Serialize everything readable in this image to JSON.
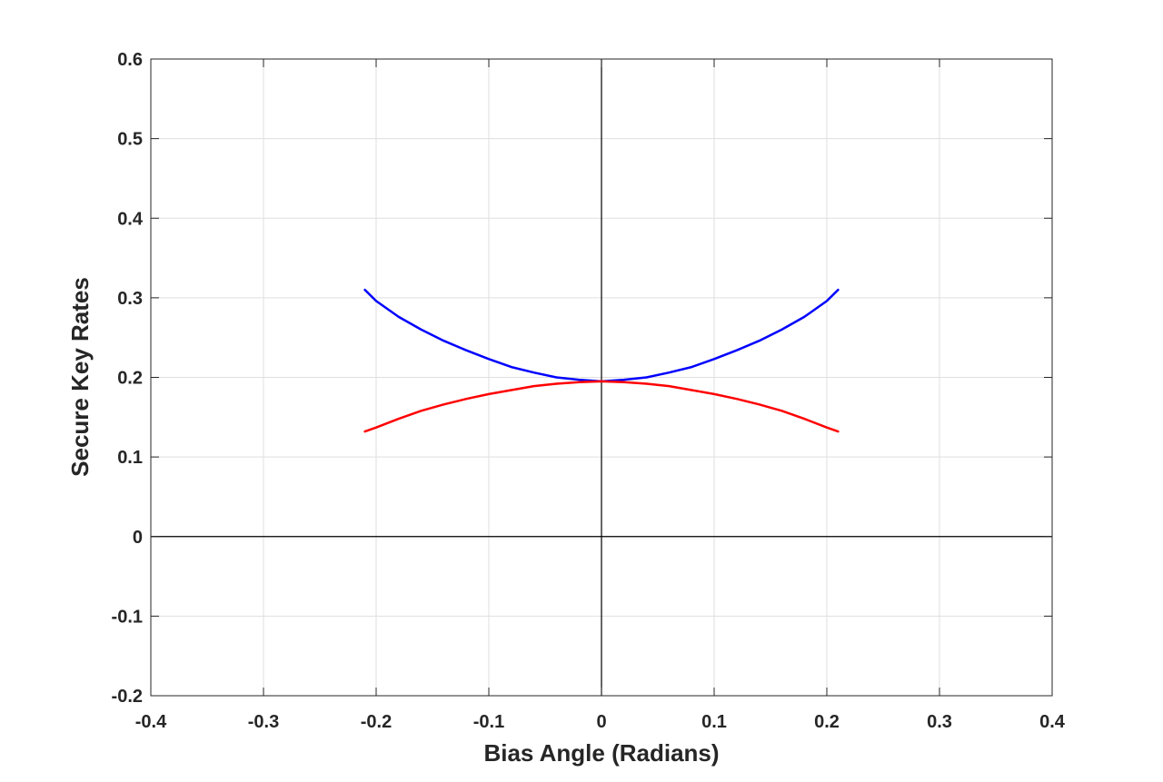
{
  "chart_data": {
    "type": "line",
    "title": "",
    "xlabel": "Bias Angle (Radians)",
    "ylabel": "Secure Key Rates",
    "xlim": [
      -0.4,
      0.4
    ],
    "ylim": [
      -0.2,
      0.6
    ],
    "xticks": [
      -0.4,
      -0.3,
      -0.2,
      -0.1,
      0,
      0.1,
      0.2,
      0.3,
      0.4
    ],
    "xtick_labels": [
      "-0.4",
      "-0.3",
      "-0.2",
      "-0.1",
      "0",
      "0.1",
      "0.2",
      "0.3",
      "0.4"
    ],
    "yticks": [
      -0.2,
      -0.1,
      0,
      0.1,
      0.2,
      0.3,
      0.4,
      0.5,
      0.6
    ],
    "ytick_labels": [
      "-0.2",
      "-0.1",
      "0",
      "0.1",
      "0.2",
      "0.3",
      "0.4",
      "0.5",
      "0.6"
    ],
    "grid": true,
    "zero_lines": true,
    "legend": "none",
    "series": [
      {
        "color": "#0000ff",
        "x": [
          -0.21,
          -0.2,
          -0.18,
          -0.16,
          -0.14,
          -0.12,
          -0.1,
          -0.08,
          -0.06,
          -0.04,
          -0.02,
          0,
          0.02,
          0.04,
          0.06,
          0.08,
          0.1,
          0.12,
          0.14,
          0.16,
          0.18,
          0.2,
          0.21
        ],
        "y": [
          0.31,
          0.296,
          0.276,
          0.26,
          0.246,
          0.234,
          0.223,
          0.213,
          0.206,
          0.2,
          0.197,
          0.195,
          0.197,
          0.2,
          0.206,
          0.213,
          0.223,
          0.234,
          0.246,
          0.26,
          0.276,
          0.296,
          0.31
        ]
      },
      {
        "color": "#ff0000",
        "x": [
          -0.21,
          -0.2,
          -0.18,
          -0.16,
          -0.14,
          -0.12,
          -0.1,
          -0.08,
          -0.06,
          -0.04,
          -0.02,
          0,
          0.02,
          0.04,
          0.06,
          0.08,
          0.1,
          0.12,
          0.14,
          0.16,
          0.18,
          0.2,
          0.21
        ],
        "y": [
          0.132,
          0.137,
          0.148,
          0.158,
          0.166,
          0.173,
          0.179,
          0.184,
          0.189,
          0.192,
          0.194,
          0.195,
          0.194,
          0.192,
          0.189,
          0.184,
          0.179,
          0.173,
          0.166,
          0.158,
          0.148,
          0.137,
          0.132
        ]
      }
    ]
  }
}
